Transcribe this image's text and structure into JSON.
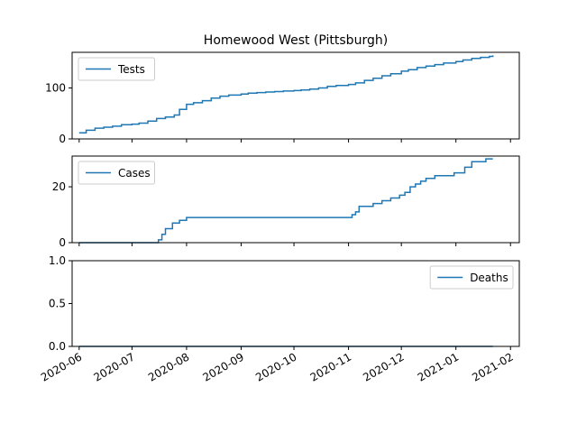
{
  "chart_data": {
    "type": "line",
    "title": "Homewood West (Pittsburgh)",
    "x_type": "date",
    "xlim": [
      "2020-05-28",
      "2021-02-06"
    ],
    "x_ticks": [
      "2020-06",
      "2020-07",
      "2020-08",
      "2020-09",
      "2020-10",
      "2020-11",
      "2020-12",
      "2021-01",
      "2021-02"
    ],
    "x_tick_dates": [
      "2020-06-01",
      "2020-07-01",
      "2020-08-01",
      "2020-09-01",
      "2020-10-01",
      "2020-11-01",
      "2020-12-01",
      "2021-01-01",
      "2021-02-01"
    ],
    "line_color": "#1f77b4",
    "panels": [
      {
        "series_name": "Tests",
        "legend_position": "upper-left",
        "ylim": [
          0,
          170
        ],
        "y_ticks": [
          0,
          100
        ],
        "x": [
          "2020-06-01",
          "2020-06-05",
          "2020-06-10",
          "2020-06-15",
          "2020-06-20",
          "2020-06-25",
          "2020-07-01",
          "2020-07-05",
          "2020-07-10",
          "2020-07-15",
          "2020-07-20",
          "2020-07-25",
          "2020-07-28",
          "2020-08-01",
          "2020-08-05",
          "2020-08-10",
          "2020-08-15",
          "2020-08-20",
          "2020-08-25",
          "2020-09-01",
          "2020-09-05",
          "2020-09-10",
          "2020-09-15",
          "2020-09-20",
          "2020-09-25",
          "2020-10-01",
          "2020-10-05",
          "2020-10-10",
          "2020-10-15",
          "2020-10-20",
          "2020-10-25",
          "2020-11-01",
          "2020-11-05",
          "2020-11-10",
          "2020-11-15",
          "2020-11-20",
          "2020-11-25",
          "2020-12-01",
          "2020-12-05",
          "2020-12-10",
          "2020-12-15",
          "2020-12-20",
          "2020-12-25",
          "2021-01-01",
          "2021-01-05",
          "2021-01-10",
          "2021-01-15",
          "2021-01-20",
          "2021-01-22"
        ],
        "values": [
          12,
          17,
          21,
          23,
          25,
          28,
          29,
          31,
          35,
          40,
          43,
          47,
          58,
          68,
          71,
          75,
          80,
          84,
          86,
          88,
          90,
          91,
          92,
          93,
          94,
          95,
          96,
          98,
          100,
          103,
          105,
          107,
          110,
          115,
          119,
          124,
          128,
          133,
          136,
          140,
          143,
          146,
          149,
          152,
          155,
          158,
          160,
          162,
          164
        ]
      },
      {
        "series_name": "Cases",
        "legend_position": "upper-left",
        "ylim": [
          0,
          31
        ],
        "y_ticks": [
          0,
          20
        ],
        "x": [
          "2020-06-01",
          "2020-07-14",
          "2020-07-16",
          "2020-07-18",
          "2020-07-20",
          "2020-07-24",
          "2020-07-28",
          "2020-08-01",
          "2020-08-10",
          "2020-09-01",
          "2020-10-01",
          "2020-11-01",
          "2020-11-03",
          "2020-11-05",
          "2020-11-07",
          "2020-11-15",
          "2020-11-20",
          "2020-11-25",
          "2020-11-30",
          "2020-12-03",
          "2020-12-06",
          "2020-12-09",
          "2020-12-12",
          "2020-12-15",
          "2020-12-20",
          "2020-12-25",
          "2020-12-31",
          "2021-01-03",
          "2021-01-06",
          "2021-01-10",
          "2021-01-14",
          "2021-01-18",
          "2021-01-22"
        ],
        "values": [
          0,
          0,
          1,
          3,
          5,
          7,
          8,
          9,
          9,
          9,
          9,
          9,
          10,
          11,
          13,
          14,
          15,
          16,
          17,
          18,
          20,
          21,
          22,
          23,
          24,
          24,
          25,
          25,
          27,
          29,
          29,
          30,
          30
        ]
      },
      {
        "series_name": "Deaths",
        "legend_position": "upper-right",
        "ylim": [
          0,
          1
        ],
        "y_ticks": [
          0.0,
          0.5,
          1.0
        ],
        "y_tick_labels": [
          "0.0",
          "0.5",
          "1.0"
        ],
        "x": [
          "2020-06-01",
          "2021-01-22"
        ],
        "values": [
          0,
          0
        ]
      }
    ]
  }
}
